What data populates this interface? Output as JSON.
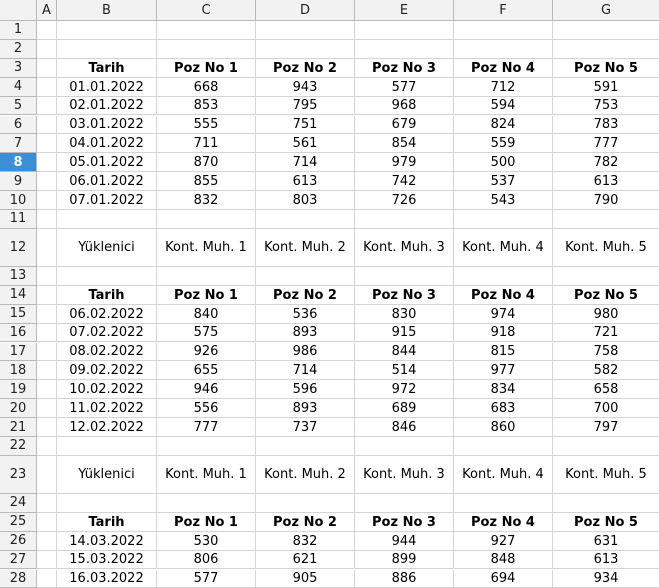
{
  "sheet": {
    "columns": [
      "A",
      "B",
      "C",
      "D",
      "E",
      "F",
      "G"
    ],
    "selected_row": 8,
    "rows": {
      "3": [
        "",
        "Tarih",
        "Poz No 1",
        "Poz No 2",
        "Poz No 3",
        "Poz No 4",
        "Poz No 5"
      ],
      "4": [
        "",
        "01.01.2022",
        "668",
        "943",
        "577",
        "712",
        "591"
      ],
      "5": [
        "",
        "02.01.2022",
        "853",
        "795",
        "968",
        "594",
        "753"
      ],
      "6": [
        "",
        "03.01.2022",
        "555",
        "751",
        "679",
        "824",
        "783"
      ],
      "7": [
        "",
        "04.01.2022",
        "711",
        "561",
        "854",
        "559",
        "777"
      ],
      "8": [
        "",
        "05.01.2022",
        "870",
        "714",
        "979",
        "500",
        "782"
      ],
      "9": [
        "",
        "06.01.2022",
        "855",
        "613",
        "742",
        "537",
        "613"
      ],
      "10": [
        "",
        "07.01.2022",
        "832",
        "803",
        "726",
        "543",
        "790"
      ],
      "12": [
        "",
        "Yüklenici",
        "Kont. Muh. 1",
        "Kont. Muh. 2",
        "Kont. Muh. 3",
        "Kont. Muh. 4",
        "Kont. Muh. 5"
      ],
      "14": [
        "",
        "Tarih",
        "Poz No 1",
        "Poz No 2",
        "Poz No 3",
        "Poz No 4",
        "Poz No 5"
      ],
      "15": [
        "",
        "06.02.2022",
        "840",
        "536",
        "830",
        "974",
        "980"
      ],
      "16": [
        "",
        "07.02.2022",
        "575",
        "893",
        "915",
        "918",
        "721"
      ],
      "17": [
        "",
        "08.02.2022",
        "926",
        "986",
        "844",
        "815",
        "758"
      ],
      "18": [
        "",
        "09.02.2022",
        "655",
        "714",
        "514",
        "977",
        "582"
      ],
      "19": [
        "",
        "10.02.2022",
        "946",
        "596",
        "972",
        "834",
        "658"
      ],
      "20": [
        "",
        "11.02.2022",
        "556",
        "893",
        "689",
        "683",
        "700"
      ],
      "21": [
        "",
        "12.02.2022",
        "777",
        "737",
        "846",
        "860",
        "797"
      ],
      "23": [
        "",
        "Yüklenici",
        "Kont. Muh. 1",
        "Kont. Muh. 2",
        "Kont. Muh. 3",
        "Kont. Muh. 4",
        "Kont. Muh. 5"
      ],
      "25": [
        "",
        "Tarih",
        "Poz No 1",
        "Poz No 2",
        "Poz No 3",
        "Poz No 4",
        "Poz No 5"
      ],
      "26": [
        "",
        "14.03.2022",
        "530",
        "832",
        "944",
        "927",
        "631"
      ],
      "27": [
        "",
        "15.03.2022",
        "806",
        "621",
        "899",
        "848",
        "613"
      ],
      "28": [
        "",
        "16.03.2022",
        "577",
        "905",
        "886",
        "694",
        "934"
      ]
    },
    "bold_rows": [
      3,
      14,
      25
    ],
    "row_numbers": [
      "1",
      "2",
      "3",
      "4",
      "5",
      "6",
      "7",
      "8",
      "9",
      "10",
      "11",
      "12",
      "13",
      "14",
      "15",
      "16",
      "17",
      "18",
      "19",
      "20",
      "21",
      "22",
      "23",
      "24",
      "25",
      "26",
      "27",
      "28"
    ]
  },
  "colors": {
    "header_bg": "#f2f2f2",
    "selection": "#3c8fd6",
    "gridline": "#d4d4d4"
  }
}
